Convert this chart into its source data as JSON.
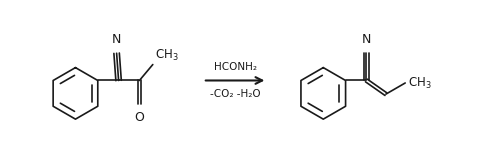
{
  "bg_color": "#ffffff",
  "line_color": "#1a1a1a",
  "arrow_above": "HCONH₂",
  "arrow_below": "-CO₂ -H₂O",
  "figsize": [
    4.84,
    1.58
  ],
  "dpi": 100,
  "xlim": [
    0,
    9.68
  ],
  "ylim": [
    0,
    3.16
  ]
}
